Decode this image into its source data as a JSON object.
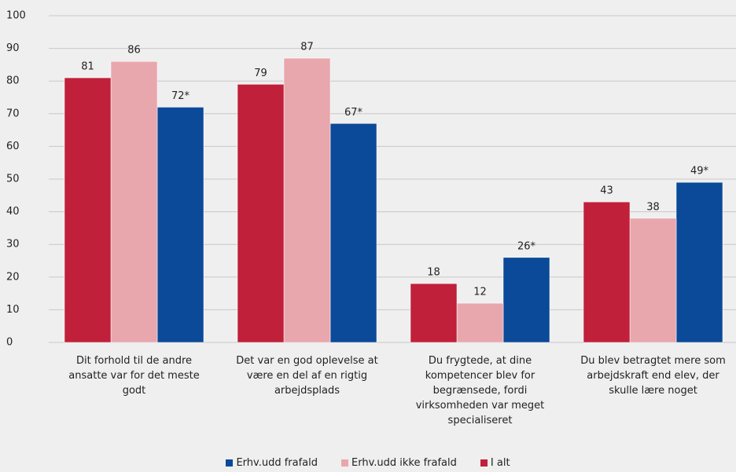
{
  "chart_data": {
    "type": "bar",
    "categories": [
      "Dit forhold til de andre ansatte var for det meste godt",
      "Det var en god oplevelse at være en del af en rigtig arbejdsplads",
      "Du frygtede, at dine kompetencer blev for begrænsede, fordi virksomheden var meget specialiseret",
      "Du blev betragtet mere som arbejdskraft end elev, der skulle lære noget"
    ],
    "series": [
      {
        "name": "Erhv.udd frafald",
        "color": "#0b4a98",
        "values": [
          72,
          67,
          26,
          49
        ],
        "value_labels": [
          "72*",
          "67*",
          "26*",
          "49*"
        ]
      },
      {
        "name": "Erhv.udd ikke frafald",
        "color": "#e8a7ad",
        "values": [
          86,
          87,
          12,
          38
        ]
      },
      {
        "name": "I alt",
        "color": "#c0203a",
        "values": [
          81,
          79,
          18,
          43
        ]
      }
    ],
    "ylim": [
      0,
      100
    ],
    "yticks": [
      0,
      10,
      20,
      30,
      40,
      50,
      60,
      70,
      80,
      90,
      100
    ],
    "grid": true,
    "legend": "bottom"
  }
}
